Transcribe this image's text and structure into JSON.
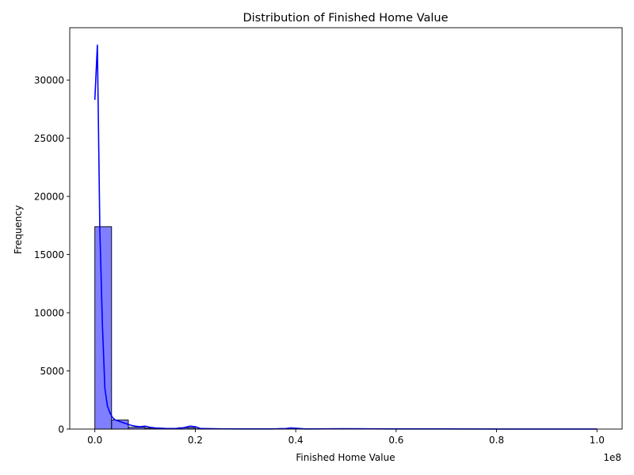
{
  "chart_data": {
    "type": "bar",
    "subtype": "histogram-with-kde",
    "title": "Distribution of Finished Home Value",
    "xlabel": "Finished Home Value",
    "ylabel": "Frequency",
    "x_offset_label": "1e8",
    "xlim": [
      -0.05,
      1.05
    ],
    "ylim": [
      0,
      34500
    ],
    "x_ticks": [
      0.0,
      0.2,
      0.4,
      0.6,
      0.8,
      1.0
    ],
    "x_tick_labels": [
      "0.0",
      "0.2",
      "0.4",
      "0.6",
      "0.8",
      "1.0"
    ],
    "y_ticks": [
      0,
      5000,
      10000,
      15000,
      20000,
      25000,
      30000
    ],
    "y_tick_labels": [
      "0",
      "5000",
      "10000",
      "15000",
      "20000",
      "25000",
      "30000"
    ],
    "bin_edges": [
      0.0,
      0.0333,
      0.0667,
      0.1,
      0.1333,
      0.1667,
      0.2,
      0.2333,
      0.2667,
      0.3,
      0.3333,
      0.3667,
      0.4,
      0.4333,
      0.4667,
      0.5,
      0.5333,
      0.5667,
      0.6,
      0.6333,
      0.6667,
      0.7,
      0.7333,
      0.7667,
      0.8,
      0.8333,
      0.8667,
      0.9,
      0.9333,
      0.9667,
      1.0
    ],
    "counts": [
      17400,
      780,
      150,
      80,
      40,
      120,
      20,
      10,
      5,
      5,
      5,
      50,
      5,
      5,
      15,
      5,
      5,
      5,
      5,
      5,
      5,
      5,
      5,
      5,
      5,
      5,
      5,
      5,
      5,
      5
    ],
    "kde": {
      "x": [
        0.0,
        0.005,
        0.01,
        0.015,
        0.02,
        0.025,
        0.03,
        0.035,
        0.04,
        0.05,
        0.06,
        0.07,
        0.08,
        0.09,
        0.1,
        0.11,
        0.12,
        0.14,
        0.16,
        0.175,
        0.19,
        0.2,
        0.21,
        0.25,
        0.3,
        0.35,
        0.38,
        0.39,
        0.4,
        0.42,
        0.5,
        0.6,
        0.7,
        0.8,
        0.9,
        1.0
      ],
      "y": [
        28300,
        33000,
        17000,
        9000,
        3500,
        2000,
        1400,
        1000,
        800,
        650,
        500,
        350,
        250,
        200,
        250,
        150,
        100,
        60,
        50,
        100,
        250,
        200,
        50,
        20,
        10,
        10,
        40,
        100,
        70,
        10,
        30,
        10,
        10,
        5,
        5,
        5
      ]
    },
    "colors": {
      "bar": "#0000ff",
      "kde": "#0000ff"
    },
    "grid": false,
    "legend": "none"
  }
}
